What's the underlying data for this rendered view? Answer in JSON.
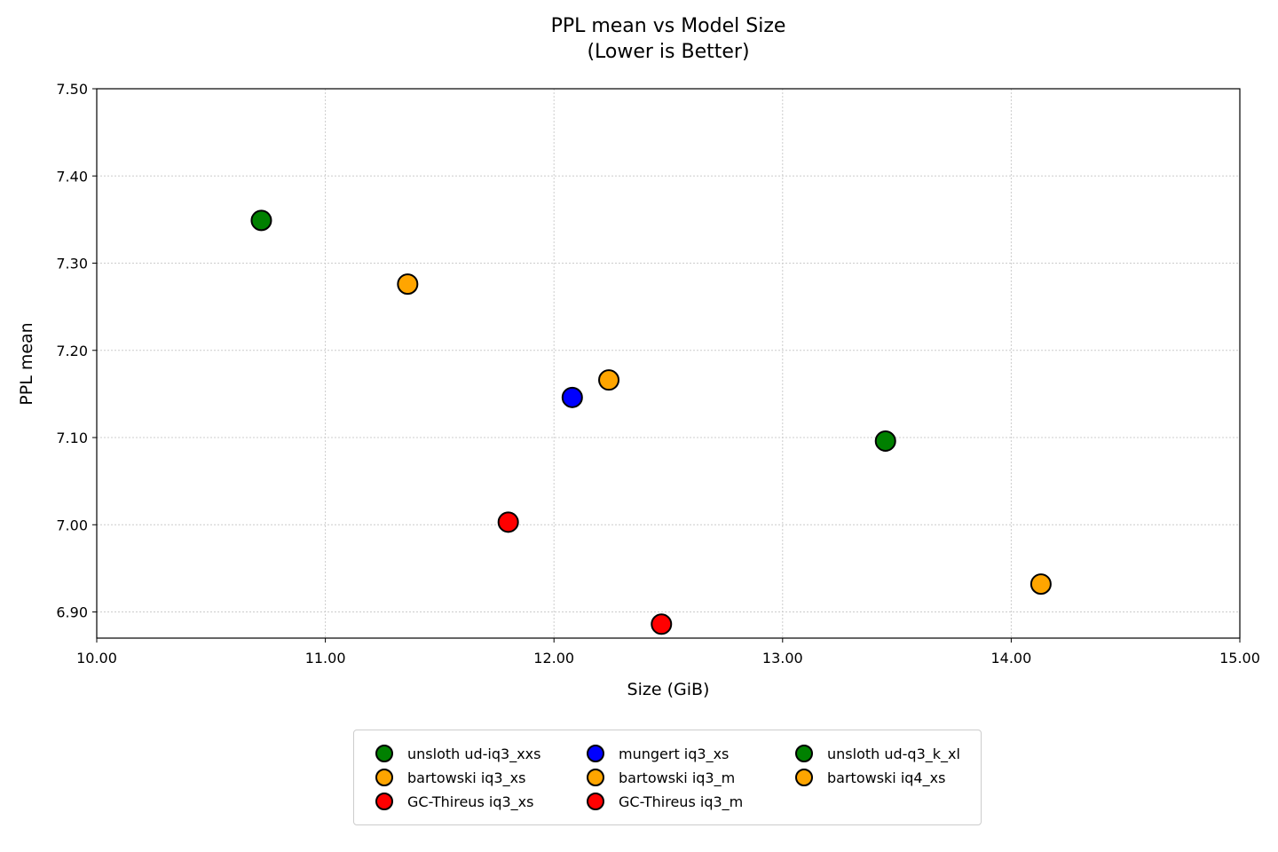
{
  "chart_data": {
    "type": "scatter",
    "title": "PPL mean vs Model Size\n(Lower is Better)",
    "title_lines": [
      "PPL mean vs Model Size",
      "(Lower is Better)"
    ],
    "xlabel": "Size (GiB)",
    "ylabel": "PPL mean",
    "xlim": [
      10.0,
      15.0
    ],
    "ylim": [
      6.87,
      7.5
    ],
    "xticks": [
      "10.00",
      "11.00",
      "12.00",
      "13.00",
      "14.00",
      "15.00"
    ],
    "yticks": [
      "6.90",
      "7.00",
      "7.10",
      "7.20",
      "7.30",
      "7.40",
      "7.50"
    ],
    "grid": true,
    "legend_placement": "below",
    "series": [
      {
        "name": "unsloth ud-iq3_xxs",
        "color": "#008000",
        "x": 10.72,
        "y": 7.349
      },
      {
        "name": "bartowski iq3_xs",
        "color": "#FFA500",
        "x": 11.36,
        "y": 7.276
      },
      {
        "name": "GC-Thireus iq3_xs",
        "color": "#FF0000",
        "x": 11.8,
        "y": 7.003
      },
      {
        "name": "mungert iq3_xs",
        "color": "#0000FF",
        "x": 12.08,
        "y": 7.146
      },
      {
        "name": "bartowski iq3_m",
        "color": "#FFA500",
        "x": 12.24,
        "y": 7.166
      },
      {
        "name": "GC-Thireus iq3_m",
        "color": "#FF0000",
        "x": 12.47,
        "y": 6.886
      },
      {
        "name": "unsloth ud-q3_k_xl",
        "color": "#008000",
        "x": 13.45,
        "y": 7.096
      },
      {
        "name": "bartowski iq4_xs",
        "color": "#FFA500",
        "x": 14.13,
        "y": 6.932
      }
    ]
  }
}
